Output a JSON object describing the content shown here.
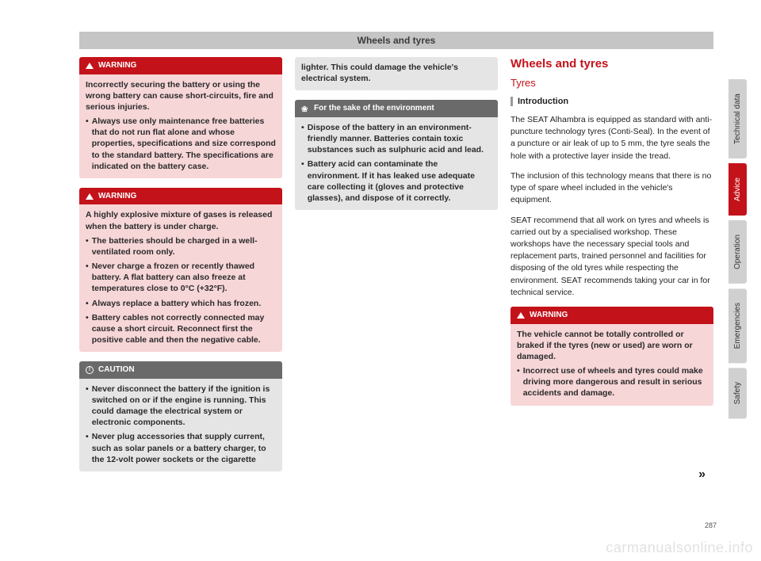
{
  "header": {
    "title": "Wheels and tyres"
  },
  "col1": {
    "warning1": {
      "label": "WARNING",
      "intro": "Incorrectly securing the battery or using the wrong battery can cause short-circuits, fire and serious injuries.",
      "b1": "Always use only maintenance free batteries that do not run flat alone and whose properties, specifications and size correspond to the standard battery. The specifications are indicated on the battery case."
    },
    "warning2": {
      "label": "WARNING",
      "intro": "A highly explosive mixture of gases is released when the battery is under charge.",
      "b1": "The batteries should be charged in a well-ventilated room only.",
      "b2": "Never charge a frozen or recently thawed battery. A flat battery can also freeze at temperatures close to 0°C (+32°F).",
      "b3": "Always replace a battery which has frozen.",
      "b4": "Battery cables not correctly connected may cause a short circuit. Reconnect first the positive cable and then the negative cable."
    },
    "caution": {
      "label": "CAUTION",
      "b1": "Never disconnect the battery if the ignition is switched on or if the engine is running. This could damage the electrical system or electronic components.",
      "b2": "Never plug accessories that supply current, such as solar panels or a battery charger, to the 12-volt power sockets or the cigarette"
    }
  },
  "col2": {
    "cont": {
      "text": "lighter. This could damage the vehicle's electrical system."
    },
    "env": {
      "label": "For the sake of the environment",
      "b1": "Dispose of the battery in an environment-friendly manner. Batteries contain toxic substances such as sulphuric acid and lead.",
      "b2": "Battery acid can contaminate the environment. If it has leaked use adequate care collecting it (gloves and protective glasses), and dispose of it correctly."
    }
  },
  "col3": {
    "title": "Wheels and tyres",
    "subtitle": "Tyres",
    "subsection": "Introduction",
    "p1": "The SEAT Alhambra is equipped as standard with anti-puncture technology tyres (Conti-Seal). In the event of a puncture or air leak of up to 5 mm, the tyre seals the hole with a protective layer inside the tread.",
    "p2": "The inclusion of this technology means that there is no type of spare wheel included in the vehicle's equipment.",
    "p3": "SEAT recommend that all work on tyres and wheels is carried out by a specialised workshop. These workshops have the necessary special tools and replacement parts, trained personnel and facilities for disposing of the old tyres while respecting the environment. SEAT recommends taking your car in for technical service.",
    "warning": {
      "label": "WARNING",
      "intro": "The vehicle cannot be totally controlled or braked if the tyres (new or used) are worn or damaged.",
      "b1": "Incorrect use of wheels and tyres could make driving more dangerous and result in serious accidents and damage."
    }
  },
  "sidebar": {
    "t1": "Technical data",
    "t2": "Advice",
    "t3": "Operation",
    "t4": "Emergencies",
    "t5": "Safety"
  },
  "pagenum": "287",
  "continue": "»",
  "watermark": "carmanualsonline.info",
  "colors": {
    "red": "#c4121a",
    "grey": "#d0d0d0"
  }
}
